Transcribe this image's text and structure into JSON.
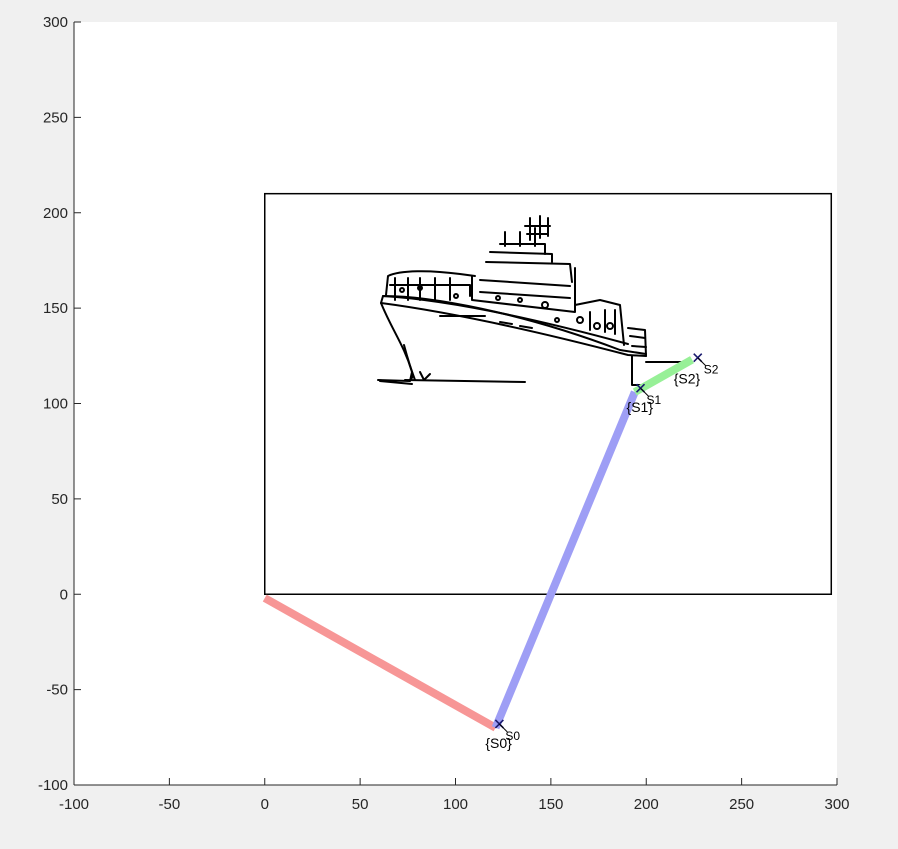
{
  "chart_data": {
    "type": "line",
    "title": "",
    "xlabel": "",
    "ylabel": "",
    "xlim": [
      -100,
      300
    ],
    "ylim": [
      -100,
      300
    ],
    "grid": false,
    "xticks": [
      -100,
      -50,
      0,
      50,
      100,
      150,
      200,
      250,
      300
    ],
    "yticks": [
      -100,
      -50,
      0,
      50,
      100,
      150,
      200,
      250,
      300
    ],
    "xtick_labels": [
      "-100",
      "-50",
      "0",
      "50",
      "100",
      "150",
      "200",
      "250",
      "300"
    ],
    "ytick_labels": [
      "-100",
      "-50",
      "0",
      "50",
      "100",
      "150",
      "200",
      "250",
      "300"
    ],
    "rectangle": {
      "x": [
        0,
        297
      ],
      "y": [
        0,
        210
      ],
      "color": "#000000"
    },
    "links": [
      {
        "from": [
          0,
          -2
        ],
        "to": [
          121,
          -70
        ],
        "color": "#f79696"
      },
      {
        "from": [
          121,
          -70
        ],
        "to": [
          194,
          106
        ],
        "color": "#9e9ef5"
      },
      {
        "from": [
          194,
          106
        ],
        "to": [
          224,
          123
        ],
        "color": "#97f097"
      }
    ],
    "frames": [
      {
        "x": 123,
        "y": -68,
        "label": "{S0}",
        "tag": "S0"
      },
      {
        "x": 197,
        "y": 108,
        "label": "{S1}",
        "tag": "S1"
      },
      {
        "x": 227,
        "y": 124,
        "label": "{S2}",
        "tag": "S2"
      }
    ],
    "image_description": "ship-outline-drawing"
  }
}
